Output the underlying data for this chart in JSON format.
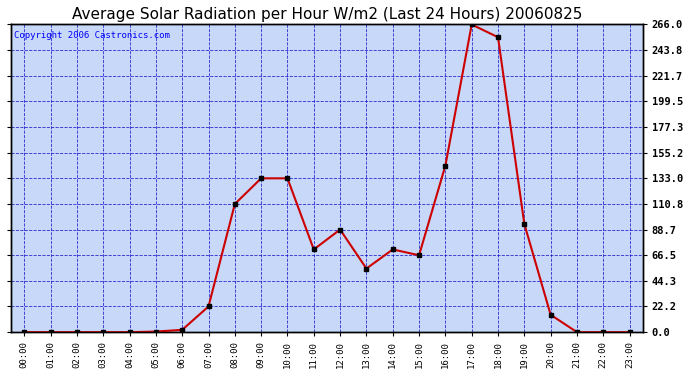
{
  "title": "Average Solar Radiation per Hour W/m2 (Last 24 Hours) 20060825",
  "copyright": "Copyright 2006 Castronics.com",
  "hours": [
    "00:00",
    "01:00",
    "02:00",
    "03:00",
    "04:00",
    "05:00",
    "06:00",
    "07:00",
    "08:00",
    "09:00",
    "10:00",
    "11:00",
    "12:00",
    "13:00",
    "14:00",
    "15:00",
    "16:00",
    "17:00",
    "18:00",
    "19:00",
    "20:00",
    "21:00",
    "22:00",
    "23:00"
  ],
  "values": [
    0.0,
    0.0,
    0.0,
    0.0,
    0.0,
    0.5,
    2.0,
    22.2,
    110.8,
    133.0,
    133.0,
    71.5,
    88.7,
    55.0,
    71.5,
    66.5,
    144.0,
    266.0,
    255.0,
    93.5,
    15.0,
    0.0,
    0.0,
    0.0
  ],
  "line_color": "#cc0000",
  "marker_color": "#000000",
  "bg_color": "#ffffff",
  "plot_bg_color": "#c8d8f8",
  "grid_color": "#0000cc",
  "title_fontsize": 11,
  "copyright_fontsize": 6.5,
  "yticks": [
    0.0,
    22.2,
    44.3,
    66.5,
    88.7,
    110.8,
    133.0,
    155.2,
    177.3,
    199.5,
    221.7,
    243.8,
    266.0
  ],
  "ymax": 266.0,
  "ymin": 0.0
}
